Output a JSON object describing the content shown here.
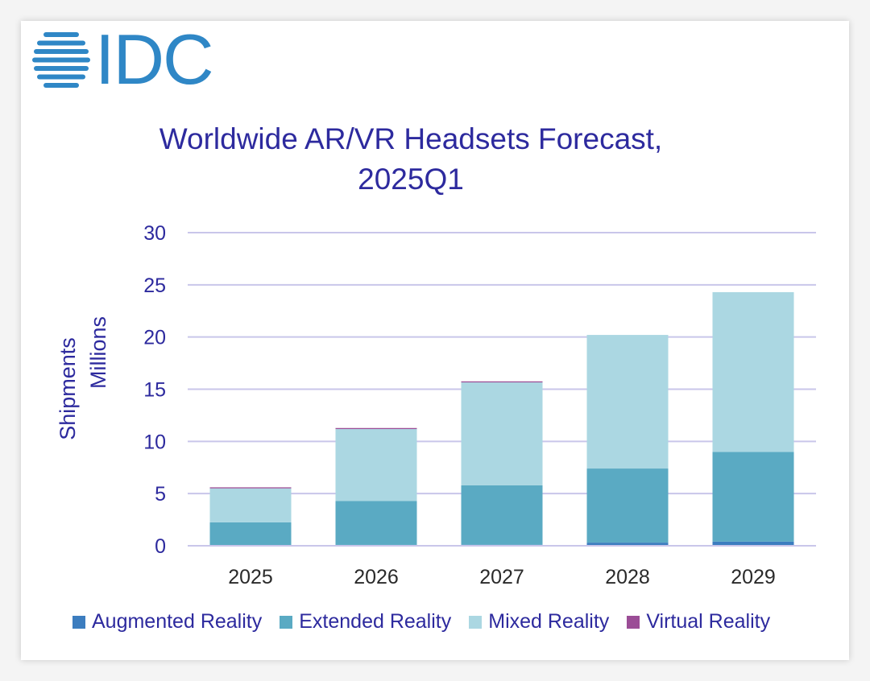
{
  "logo": {
    "text": "IDC",
    "color": "#2f87c6"
  },
  "colors": {
    "title": "#2d2a9e",
    "axis_text": "#2d2a9e",
    "gridline": "#c9c6ea",
    "legend_text": "#2d2a9e"
  },
  "chart_data": {
    "type": "bar",
    "stacked": true,
    "title": "Worldwide AR/VR Headsets Forecast,",
    "title_line2": "2025Q1",
    "xlabel": "",
    "ylabel": "Shipments",
    "ylabel_line2": "Millions",
    "ylim": [
      0,
      30
    ],
    "yticks": [
      0,
      5,
      10,
      15,
      20,
      25,
      30
    ],
    "categories": [
      "2025",
      "2026",
      "2027",
      "2028",
      "2029"
    ],
    "series": [
      {
        "name": "Augmented Reality",
        "color": "#3c7dbf",
        "values": [
          0.05,
          0.08,
          0.1,
          0.3,
          0.4
        ]
      },
      {
        "name": "Extended Reality",
        "color": "#5aaac3",
        "values": [
          2.2,
          4.2,
          5.7,
          7.1,
          8.6
        ]
      },
      {
        "name": "Mixed Reality",
        "color": "#abd7e2",
        "values": [
          3.25,
          6.9,
          9.85,
          12.8,
          15.3
        ]
      },
      {
        "name": "Virtual Reality",
        "color": "#9b4d96",
        "values": [
          0.1,
          0.1,
          0.1,
          0.0,
          0.0
        ]
      }
    ],
    "legend_position": "bottom",
    "grid": true
  }
}
